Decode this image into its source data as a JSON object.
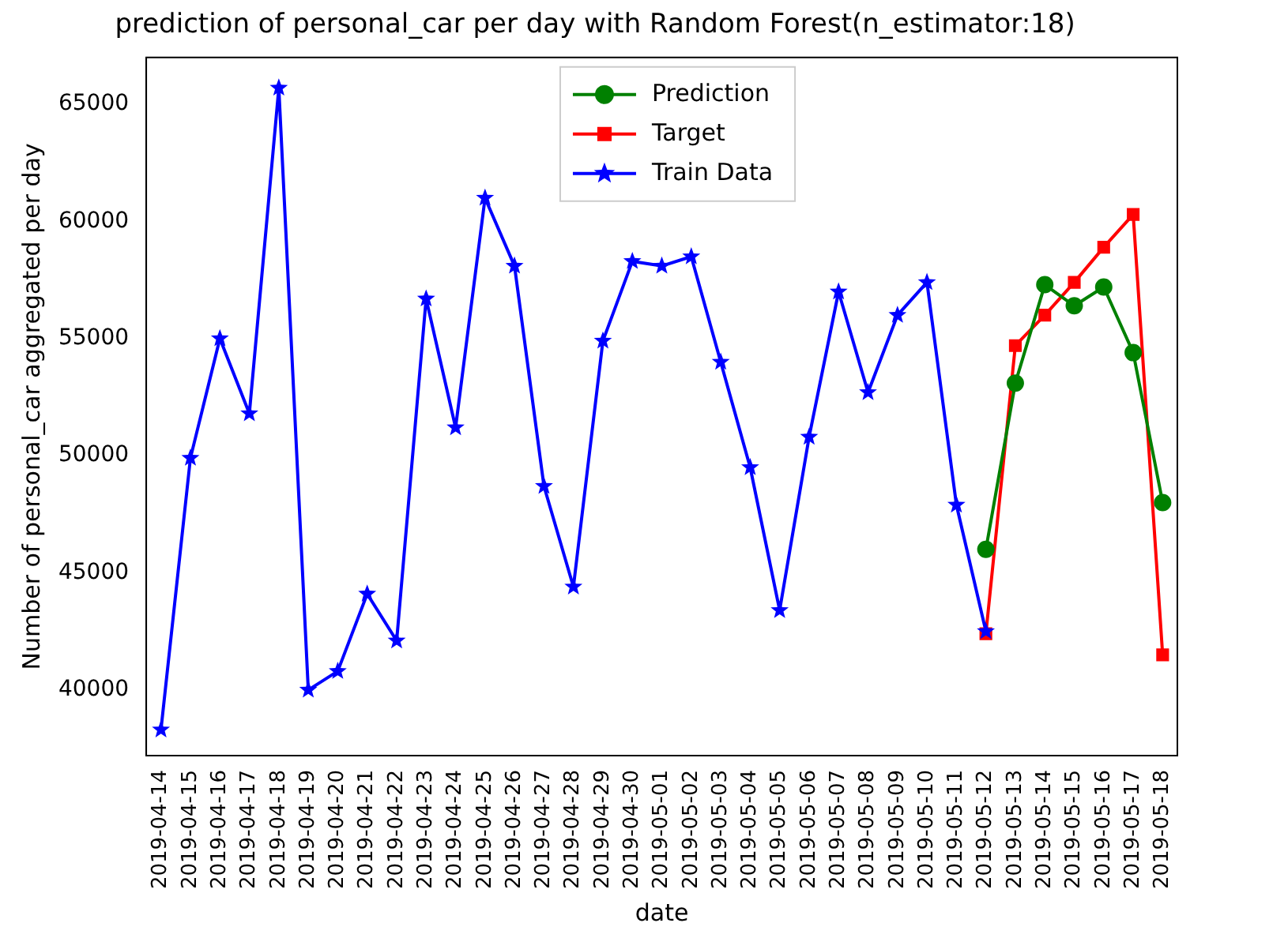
{
  "chart_data": {
    "type": "line",
    "title": "prediction of personal_car per day with Random Forest(n_estimator:18)",
    "xlabel": "date",
    "ylabel": "Number of personal_car aggregated per day",
    "categories": [
      "2019-04-14",
      "2019-04-15",
      "2019-04-16",
      "2019-04-17",
      "2019-04-18",
      "2019-04-19",
      "2019-04-20",
      "2019-04-21",
      "2019-04-22",
      "2019-04-23",
      "2019-04-24",
      "2019-04-25",
      "2019-04-26",
      "2019-04-27",
      "2019-04-28",
      "2019-04-29",
      "2019-04-30",
      "2019-05-01",
      "2019-05-02",
      "2019-05-03",
      "2019-05-04",
      "2019-05-05",
      "2019-05-06",
      "2019-05-07",
      "2019-05-08",
      "2019-05-09",
      "2019-05-10",
      "2019-05-11",
      "2019-05-12",
      "2019-05-13",
      "2019-05-14",
      "2019-05-15",
      "2019-05-16",
      "2019-05-17",
      "2019-05-18"
    ],
    "series": [
      {
        "name": "Prediction",
        "color": "#008000",
        "marker": "circle",
        "values": [
          null,
          null,
          null,
          null,
          null,
          null,
          null,
          null,
          null,
          null,
          null,
          null,
          null,
          null,
          null,
          null,
          null,
          null,
          null,
          null,
          null,
          null,
          null,
          null,
          null,
          null,
          null,
          null,
          46000,
          53100,
          57300,
          56400,
          57200,
          54400,
          48000
        ]
      },
      {
        "name": "Target",
        "color": "#ff0000",
        "marker": "square",
        "values": [
          null,
          null,
          null,
          null,
          null,
          null,
          null,
          null,
          null,
          null,
          null,
          null,
          null,
          null,
          null,
          null,
          null,
          null,
          null,
          null,
          null,
          null,
          null,
          null,
          null,
          null,
          null,
          null,
          42400,
          54700,
          56000,
          57400,
          58900,
          60300,
          41500
        ]
      },
      {
        "name": "Train Data",
        "color": "#0000ff",
        "marker": "star",
        "values": [
          38300,
          49900,
          55000,
          51800,
          65700,
          40000,
          40800,
          44100,
          42100,
          56700,
          51200,
          61000,
          58100,
          48700,
          44400,
          54900,
          58300,
          58100,
          58500,
          54000,
          49500,
          43400,
          50800,
          57000,
          52700,
          56000,
          57400,
          47900,
          42500,
          null,
          null,
          null,
          null,
          null,
          null
        ]
      }
    ],
    "ylim": [
      37200,
      67000
    ],
    "yticks": [
      40000,
      45000,
      50000,
      55000,
      60000,
      65000
    ],
    "legend": "top",
    "grid": false,
    "line_style": "solid"
  }
}
